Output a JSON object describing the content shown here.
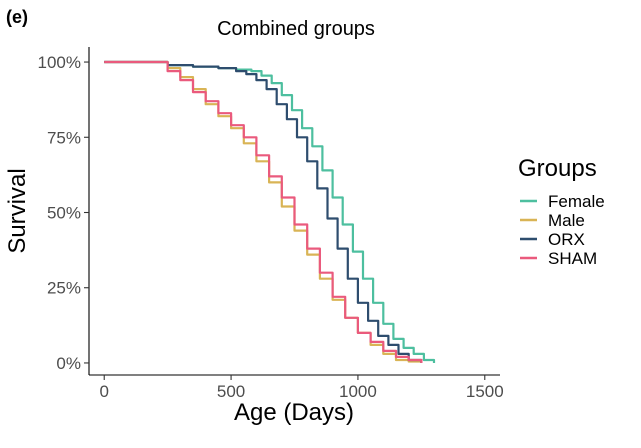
{
  "panel_label": "(e)",
  "chart_data": {
    "type": "line",
    "title": "Combined groups",
    "xlabel": "Age (Days)",
    "ylabel": "Survival",
    "xlim": [
      -60,
      1560
    ],
    "ylim": [
      -0.04,
      1.05
    ],
    "x_ticks": [
      0,
      500,
      1000,
      1500
    ],
    "x_tick_labels": [
      "0",
      "500",
      "1000",
      "1500"
    ],
    "y_ticks": [
      0,
      0.25,
      0.5,
      0.75,
      1.0
    ],
    "y_tick_labels": [
      "0%",
      "25%",
      "50%",
      "75%",
      "100%"
    ],
    "grid": false,
    "legend": {
      "title": "Groups",
      "position": "right"
    },
    "series": [
      {
        "name": "Female",
        "color": "#4dbf9f",
        "x": [
          0,
          150,
          250,
          350,
          450,
          520,
          580,
          620,
          660,
          700,
          740,
          780,
          820,
          860,
          900,
          940,
          980,
          1020,
          1060,
          1100,
          1140,
          1180,
          1220,
          1260,
          1300
        ],
        "y": [
          1.0,
          1.0,
          0.99,
          0.985,
          0.98,
          0.975,
          0.97,
          0.955,
          0.93,
          0.89,
          0.84,
          0.78,
          0.72,
          0.64,
          0.55,
          0.46,
          0.37,
          0.28,
          0.2,
          0.13,
          0.08,
          0.05,
          0.03,
          0.01,
          0.0
        ]
      },
      {
        "name": "Male",
        "color": "#d9b455",
        "x": [
          0,
          150,
          250,
          300,
          350,
          400,
          450,
          500,
          550,
          600,
          650,
          700,
          750,
          800,
          850,
          900,
          950,
          1000,
          1050,
          1100,
          1150,
          1200,
          1250
        ],
        "y": [
          1.0,
          1.0,
          0.98,
          0.95,
          0.91,
          0.86,
          0.82,
          0.78,
          0.73,
          0.67,
          0.6,
          0.52,
          0.44,
          0.36,
          0.28,
          0.21,
          0.15,
          0.1,
          0.06,
          0.03,
          0.01,
          0.005,
          0.0
        ]
      },
      {
        "name": "ORX",
        "color": "#2e4d6e",
        "x": [
          0,
          150,
          250,
          350,
          450,
          520,
          560,
          600,
          640,
          680,
          720,
          760,
          800,
          840,
          880,
          920,
          960,
          1000,
          1040,
          1080,
          1120,
          1160,
          1200,
          1250
        ],
        "y": [
          1.0,
          1.0,
          0.99,
          0.985,
          0.98,
          0.97,
          0.96,
          0.94,
          0.91,
          0.86,
          0.81,
          0.75,
          0.67,
          0.58,
          0.48,
          0.38,
          0.28,
          0.2,
          0.14,
          0.09,
          0.06,
          0.03,
          0.01,
          0.0
        ]
      },
      {
        "name": "SHAM",
        "color": "#ea5a7d",
        "x": [
          0,
          150,
          250,
          300,
          350,
          400,
          450,
          500,
          550,
          600,
          650,
          700,
          750,
          800,
          850,
          900,
          950,
          1000,
          1050,
          1100,
          1150,
          1200,
          1250
        ],
        "y": [
          1.0,
          1.0,
          0.97,
          0.94,
          0.9,
          0.87,
          0.83,
          0.79,
          0.75,
          0.69,
          0.62,
          0.55,
          0.46,
          0.38,
          0.3,
          0.22,
          0.15,
          0.1,
          0.07,
          0.04,
          0.02,
          0.01,
          0.0
        ]
      }
    ]
  }
}
